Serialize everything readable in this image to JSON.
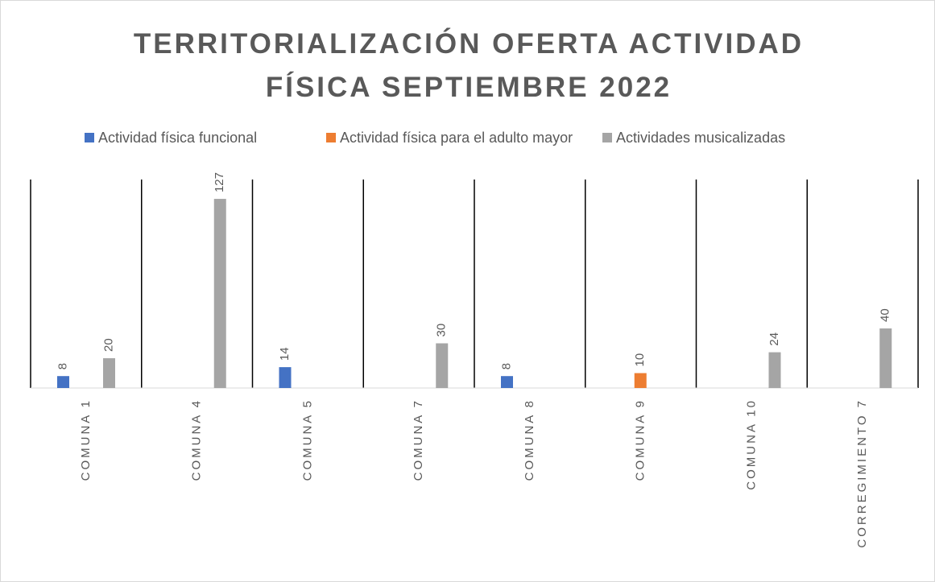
{
  "chart_data": {
    "type": "bar",
    "title": [
      "TERRITORIALIZACIÓN OFERTA ACTIVIDAD",
      "FÍSICA SEPTIEMBRE 2022"
    ],
    "categories": [
      "COMUNA 1",
      "COMUNA 4",
      "COMUNA 5",
      "COMUNA 7",
      "COMUNA 8",
      "COMUNA 9",
      "COMUNA 10",
      "CORREGIMIENTO 7"
    ],
    "series": [
      {
        "name": "Actividad física funcional",
        "color": "#4472c4",
        "values": [
          8,
          null,
          14,
          null,
          8,
          null,
          null,
          null
        ]
      },
      {
        "name": "Actividad física para el adulto mayor",
        "color": "#ed7d31",
        "values": [
          null,
          null,
          null,
          null,
          null,
          10,
          null,
          null
        ]
      },
      {
        "name": "Actividades musicalizadas",
        "color": "#a5a5a5",
        "values": [
          20,
          127,
          null,
          30,
          null,
          null,
          24,
          40
        ]
      }
    ],
    "ylim": [
      0,
      140
    ],
    "legend": "top"
  }
}
